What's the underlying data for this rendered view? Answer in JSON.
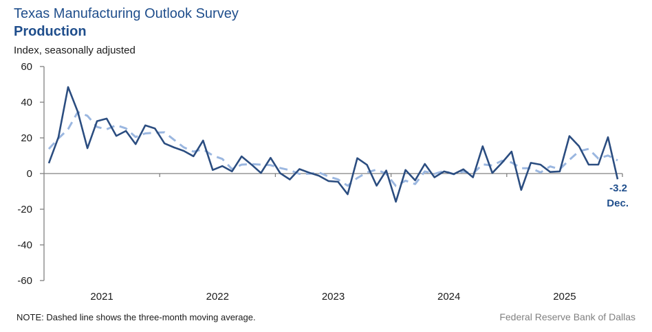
{
  "header": {
    "title": "Texas Manufacturing  Outlook Survey",
    "subtitle": "Production",
    "units": "Index, seasonally adjusted"
  },
  "footer": {
    "note": "NOTE: Dashed line shows the three-month  moving average.",
    "source": "Federal Reserve Bank of Dallas"
  },
  "colors": {
    "series": "#2b4d80",
    "moving_average": "#9bb7e0",
    "axis": "#808080",
    "accent": "#1f4e8c"
  },
  "chart_data": {
    "type": "line",
    "title": "Texas Manufacturing Outlook Survey — Production",
    "xlabel": "",
    "ylabel": "Index, seasonally adjusted",
    "ylim": [
      -60,
      60
    ],
    "yticks": [
      60,
      40,
      20,
      0,
      -20,
      -40,
      -60
    ],
    "ytick_labels": [
      "60",
      "40",
      "20",
      "0",
      "-20",
      "-40",
      "-60"
    ],
    "x_start": "2021-01",
    "x_frequency": "monthly",
    "xtick_labels": [
      "2021",
      "2022",
      "2023",
      "2024",
      "2025"
    ],
    "grid": false,
    "legend": "none",
    "series": [
      {
        "name": "Production index",
        "style": "solid",
        "values": [
          5.8,
          20.4,
          48.5,
          34.6,
          14.2,
          29.4,
          30.8,
          21.1,
          23.9,
          16.5,
          27.0,
          25.3,
          16.9,
          14.6,
          12.7,
          9.7,
          18.5,
          2.0,
          4.2,
          1.2,
          9.6,
          5.1,
          0.3,
          8.8,
          0.2,
          -3.3,
          2.5,
          0.5,
          -1.2,
          -4.2,
          -4.6,
          -11.6,
          8.6,
          4.9,
          -6.8,
          1.7,
          -15.8,
          2.0,
          -3.8,
          5.4,
          -2.1,
          1.2,
          -0.3,
          2.4,
          -2.1,
          15.3,
          0.3,
          6.0,
          12.3,
          -9.2,
          6.0,
          5.0,
          0.9,
          1.2,
          21.0,
          15.3,
          5.0,
          5.0,
          20.4,
          -3.2
        ]
      },
      {
        "name": "Three-month moving average",
        "style": "dashed",
        "values": [
          13.8,
          19.7,
          24.9,
          34.5,
          32.4,
          26.1,
          24.8,
          27.1,
          25.3,
          20.5,
          22.5,
          22.9,
          23.1,
          18.9,
          14.7,
          12.3,
          13.6,
          10.1,
          8.2,
          2.5,
          5.0,
          5.3,
          5.0,
          4.7,
          3.1,
          1.9,
          -0.2,
          -0.1,
          0.6,
          -1.6,
          -3.3,
          -6.8,
          -2.5,
          0.6,
          2.2,
          -0.1,
          -7.0,
          -4.0,
          -5.9,
          1.2,
          -0.2,
          1.5,
          -0.4,
          1.1,
          0.0,
          5.2,
          4.5,
          7.2,
          6.2,
          3.0,
          3.0,
          0.6,
          4.0,
          2.4,
          7.7,
          12.5,
          13.8,
          8.4,
          10.1,
          7.4
        ]
      }
    ],
    "annotations": [
      {
        "text": "-3.2",
        "refers_to": "2025-12"
      },
      {
        "text": "Dec.",
        "refers_to": "2025-12"
      }
    ]
  }
}
